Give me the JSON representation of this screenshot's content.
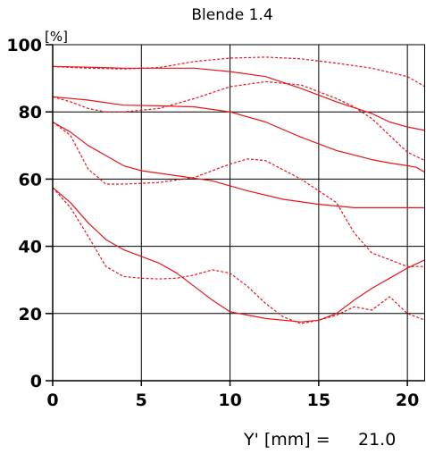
{
  "chart_data": {
    "type": "line",
    "title": "Blende 1.4",
    "ylabel": "[%]",
    "xlabel": "Y' [mm] =",
    "xmax_label": "21.0",
    "xlim": [
      0,
      21
    ],
    "ylim": [
      0,
      100
    ],
    "x_ticks": [
      0,
      5,
      10,
      15,
      20
    ],
    "y_ticks": [
      0,
      20,
      40,
      60,
      80,
      100
    ],
    "grid": true,
    "colors": {
      "line": "#e8141a",
      "grid": "#000000"
    },
    "series": [
      {
        "style": "solid",
        "x": [
          0,
          2,
          4,
          6,
          8,
          10,
          12,
          14,
          16,
          18,
          19,
          20,
          21
        ],
        "y": [
          93.5,
          93.3,
          93,
          93,
          93,
          92,
          90.5,
          87,
          83,
          79.5,
          77,
          75.5,
          74.5
        ]
      },
      {
        "style": "dashed",
        "x": [
          0,
          2,
          4,
          6,
          8,
          10,
          12,
          14,
          16,
          18,
          20,
          21
        ],
        "y": [
          93.5,
          93,
          92.8,
          93.2,
          95,
          96,
          96.3,
          95.8,
          94.5,
          93,
          90.5,
          87.5
        ]
      },
      {
        "style": "solid",
        "x": [
          0,
          2,
          4,
          6,
          8,
          10,
          12,
          14,
          16,
          18,
          19,
          20,
          20.5,
          21
        ],
        "y": [
          84.5,
          83.5,
          82,
          81.8,
          81.5,
          80,
          77,
          72.5,
          68.5,
          65.8,
          64.8,
          64,
          63.5,
          62
        ]
      },
      {
        "style": "dashed",
        "x": [
          0,
          1,
          2,
          3,
          4,
          6,
          8,
          10,
          12,
          14,
          16,
          17,
          18,
          19,
          20,
          21
        ],
        "y": [
          84.5,
          83,
          81,
          80,
          80,
          81,
          84,
          87.5,
          89,
          88,
          84,
          81.5,
          78,
          73,
          68,
          65.5
        ]
      },
      {
        "style": "solid",
        "x": [
          0,
          1,
          2,
          3,
          4,
          5,
          7,
          9,
          11,
          13,
          15,
          17,
          19,
          21
        ],
        "y": [
          77,
          74,
          70,
          67,
          64,
          62.5,
          61,
          59.5,
          56.5,
          54,
          52.5,
          51.5,
          51.5,
          51.5
        ]
      },
      {
        "style": "dashed",
        "x": [
          0,
          1,
          2,
          3,
          4,
          6,
          8,
          10,
          11,
          12,
          14,
          16,
          17,
          18,
          19,
          20,
          21
        ],
        "y": [
          77,
          73,
          63,
          58.5,
          58.5,
          59,
          60.5,
          64.5,
          66,
          65.5,
          60,
          53,
          44,
          38,
          36,
          34,
          34
        ]
      },
      {
        "style": "solid",
        "x": [
          0,
          1,
          2,
          3,
          4,
          5,
          6,
          7,
          8,
          9,
          10,
          12,
          14,
          15,
          16,
          17,
          18,
          19,
          20,
          21
        ],
        "y": [
          57.5,
          53,
          47,
          42,
          39,
          37,
          35,
          32,
          28,
          24,
          20.5,
          18.5,
          17.5,
          18,
          20,
          24,
          27.5,
          30.5,
          33.5,
          36
        ]
      },
      {
        "style": "dashed",
        "x": [
          0,
          1,
          2,
          3,
          4,
          5,
          6,
          7,
          8,
          9,
          10,
          11,
          12,
          13,
          14,
          15,
          16,
          17,
          18,
          19,
          20,
          21
        ],
        "y": [
          57.5,
          51.5,
          43,
          34,
          31,
          30.5,
          30.3,
          30.5,
          31.5,
          33,
          32,
          28,
          23,
          19,
          17,
          18,
          19.5,
          22,
          21,
          25,
          20,
          18
        ]
      }
    ]
  }
}
